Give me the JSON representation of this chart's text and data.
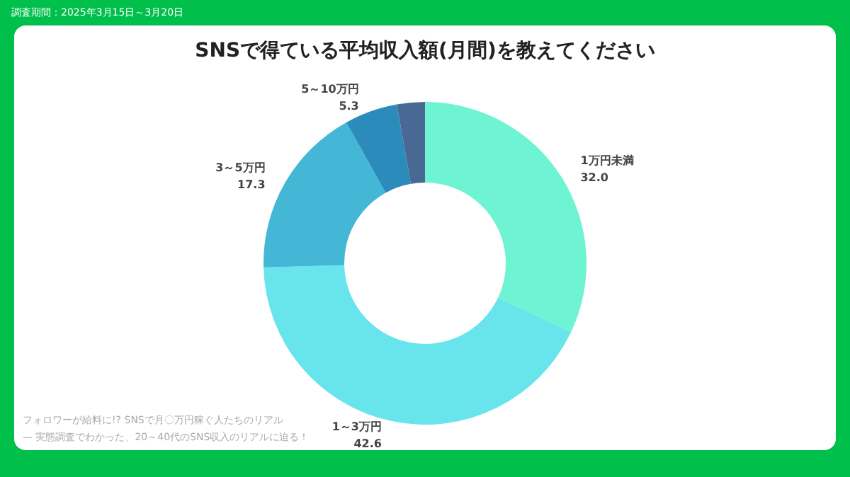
{
  "chart_data": {
    "type": "donut",
    "title": "SNSで得ている平均収入額(月間)を教えてください",
    "categories": [
      "1万円未満",
      "1～3万円",
      "3～5万円",
      "5～10万円",
      null
    ],
    "values": [
      32.0,
      42.6,
      17.3,
      5.3,
      2.8
    ],
    "value_labels": [
      "32.0",
      "42.6",
      "17.3",
      "5.3",
      null
    ],
    "colors": [
      "#6ef3d3",
      "#68e4ec",
      "#44b7d7",
      "#2b8bba",
      "#4a6894"
    ],
    "annotations": [
      "調査期間：2025年3月15日～3月20日",
      "フォロワーが給料に!? SNSで月〇万円稼ぐ人たちのリアル",
      "— 実態調査でわかった、20～40代のSNS収入のリアルに迫る！"
    ],
    "legend": false
  }
}
